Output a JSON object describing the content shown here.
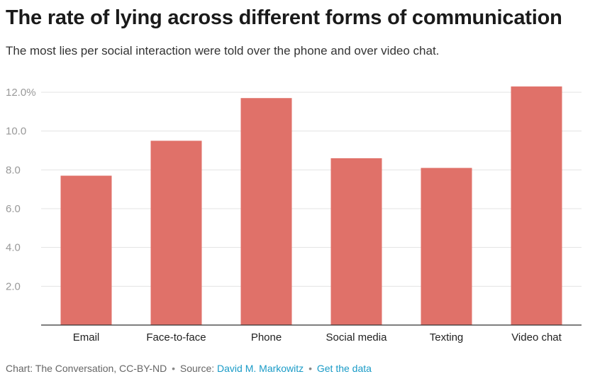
{
  "title": "The rate of lying across different forms of communication",
  "subtitle": "The most lies per social interaction were told over the phone and over video chat.",
  "footer": {
    "credit": "Chart: The Conversation, CC-BY-ND",
    "source_label": "Source:",
    "source_link": "David M. Markowitz",
    "data_link": "Get the data",
    "separator": "•"
  },
  "chart_data": {
    "type": "bar",
    "title": "The rate of lying across different forms of communication",
    "subtitle": "The most lies per social interaction were told over the phone and over video chat.",
    "categories": [
      "Email",
      "Face-to-face",
      "Phone",
      "Social media",
      "Texting",
      "Video chat"
    ],
    "values": [
      7.7,
      9.5,
      11.7,
      8.6,
      8.1,
      12.3
    ],
    "ylim": [
      0,
      12.0
    ],
    "yticks": [
      2.0,
      4.0,
      6.0,
      8.0,
      10.0,
      12.0
    ],
    "ytick_labels": [
      "2.0",
      "4.0",
      "6.0",
      "8.0",
      "10.0",
      "12.0%"
    ],
    "xlabel": "",
    "ylabel": "",
    "grid": true,
    "colors": {
      "bar": "#e07169",
      "grid": "#e3e3e3",
      "axis": "#333333",
      "tick_text": "#999999",
      "link": "#1a9bc7"
    }
  }
}
